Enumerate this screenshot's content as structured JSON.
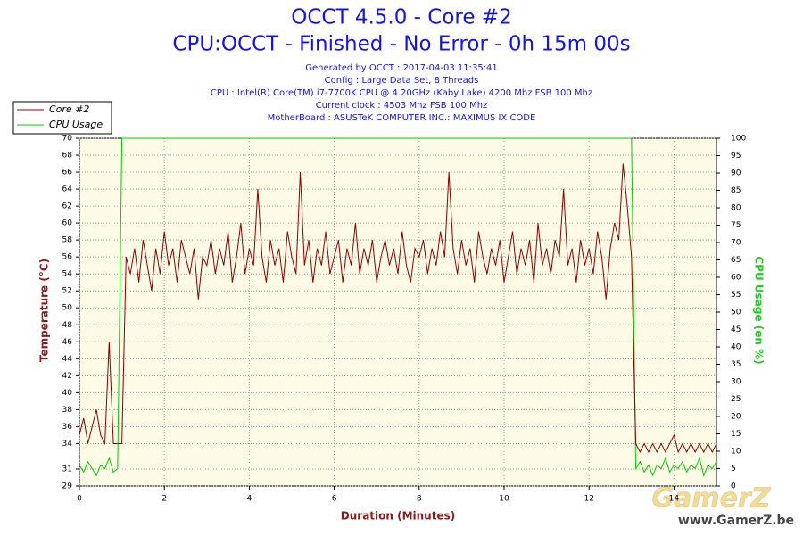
{
  "chart_data": {
    "type": "line",
    "title": "OCCT 4.5.0 - Core #2",
    "subtitle": "CPU:OCCT - Finished - No Error - 0h 15m 00s",
    "info": [
      "Generated by OCCT : 2017-04-03 11:35:41",
      "Config : Large Data Set, 8 Threads",
      "CPU : Intel(R) Core(TM) i7-7700K CPU @ 4.20GHz (Kaby Lake) 4200 Mhz FSB 100 Mhz",
      "Current clock : 4503 Mhz FSB 100 Mhz",
      "MotherBoard : ASUSTeK COMPUTER INC.: MAXIMUS IX CODE"
    ],
    "xlabel": "Duration (Minutes)",
    "ylabel": "Temperature (°C)",
    "y2label": "CPU Usage (en %)",
    "watermark": "GamerZ",
    "watermark_url": "www.GamerZ.be",
    "grid": true,
    "legend": "top-left",
    "xlim": [
      0,
      15
    ],
    "xticks": [
      0,
      2,
      4,
      6,
      8,
      10,
      12,
      14
    ],
    "ylim": [
      29,
      70
    ],
    "yticks": [
      29,
      31,
      34,
      36,
      38,
      40,
      42,
      44,
      46,
      48,
      50,
      52,
      54,
      56,
      58,
      60,
      62,
      64,
      66,
      68,
      70
    ],
    "y2lim": [
      0,
      100
    ],
    "y2ticks": [
      0,
      5,
      10,
      15,
      20,
      25,
      30,
      35,
      40,
      45,
      50,
      55,
      60,
      65,
      70,
      75,
      80,
      85,
      90,
      95,
      100
    ],
    "x": [
      0,
      0.1,
      0.2,
      0.3,
      0.4,
      0.5,
      0.6,
      0.7,
      0.8,
      0.9,
      1,
      1.1,
      1.2,
      1.3,
      1.4,
      1.5,
      1.6,
      1.7,
      1.8,
      1.9,
      2,
      2.1,
      2.2,
      2.3,
      2.4,
      2.5,
      2.6,
      2.7,
      2.8,
      2.9,
      3,
      3.1,
      3.2,
      3.3,
      3.4,
      3.5,
      3.6,
      3.7,
      3.8,
      3.9,
      4,
      4.1,
      4.2,
      4.3,
      4.4,
      4.5,
      4.6,
      4.7,
      4.8,
      4.9,
      5,
      5.1,
      5.2,
      5.3,
      5.4,
      5.5,
      5.6,
      5.7,
      5.8,
      5.9,
      6,
      6.1,
      6.2,
      6.3,
      6.4,
      6.5,
      6.6,
      6.7,
      6.8,
      6.9,
      7,
      7.1,
      7.2,
      7.3,
      7.4,
      7.5,
      7.6,
      7.7,
      7.8,
      7.9,
      8,
      8.1,
      8.2,
      8.3,
      8.4,
      8.5,
      8.6,
      8.7,
      8.8,
      8.9,
      9,
      9.1,
      9.2,
      9.3,
      9.4,
      9.5,
      9.6,
      9.7,
      9.8,
      9.9,
      10,
      10.1,
      10.2,
      10.3,
      10.4,
      10.5,
      10.6,
      10.7,
      10.8,
      10.9,
      11,
      11.1,
      11.2,
      11.3,
      11.4,
      11.5,
      11.6,
      11.7,
      11.8,
      11.9,
      12,
      12.1,
      12.2,
      12.3,
      12.4,
      12.5,
      12.6,
      12.7,
      12.8,
      12.9,
      13,
      13.1,
      13.2,
      13.3,
      13.4,
      13.5,
      13.6,
      13.7,
      13.8,
      13.9,
      14,
      14.1,
      14.2,
      14.3,
      14.4,
      14.5,
      14.6,
      14.7,
      14.8,
      14.9,
      15
    ],
    "series": [
      {
        "name": "Core #2",
        "color": "#8b0000",
        "values": [
          35,
          37,
          34,
          36,
          38,
          35,
          34,
          46,
          34,
          34,
          34,
          56,
          54,
          57,
          53,
          58,
          55,
          52,
          57,
          54,
          59,
          55,
          57,
          53,
          58,
          56,
          54,
          57,
          51,
          56,
          55,
          58,
          54,
          57,
          55,
          59,
          53,
          56,
          60,
          54,
          57,
          55,
          64,
          56,
          53,
          58,
          55,
          57,
          53,
          59,
          56,
          54,
          66,
          55,
          58,
          53,
          57,
          55,
          59,
          54,
          56,
          58,
          53,
          57,
          55,
          60,
          54,
          57,
          55,
          58,
          53,
          56,
          58,
          55,
          57,
          54,
          59,
          55,
          53,
          57,
          56,
          58,
          54,
          57,
          55,
          59,
          56,
          66,
          57,
          54,
          58,
          55,
          57,
          53,
          59,
          56,
          54,
          57,
          55,
          58,
          53,
          56,
          59,
          54,
          57,
          55,
          58,
          53,
          60,
          55,
          57,
          54,
          58,
          56,
          64,
          55,
          57,
          53,
          58,
          55,
          57,
          54,
          59,
          56,
          51,
          57,
          60,
          58,
          67,
          62,
          56,
          34,
          33,
          34,
          33,
          34,
          33,
          34,
          33,
          34,
          35,
          33,
          34,
          33,
          34,
          33,
          34,
          33,
          34,
          33,
          34
        ]
      },
      {
        "name": "CPU Usage",
        "color": "#00cc00",
        "axis": "y2",
        "values": [
          6,
          4,
          7,
          5,
          3,
          6,
          5,
          8,
          4,
          5,
          100,
          100,
          100,
          100,
          100,
          100,
          100,
          100,
          100,
          100,
          100,
          100,
          100,
          100,
          100,
          100,
          100,
          100,
          100,
          100,
          100,
          100,
          100,
          100,
          100,
          100,
          100,
          100,
          100,
          100,
          100,
          100,
          100,
          100,
          100,
          100,
          100,
          100,
          100,
          100,
          100,
          100,
          100,
          100,
          100,
          100,
          100,
          100,
          100,
          100,
          100,
          100,
          100,
          100,
          100,
          100,
          100,
          100,
          100,
          100,
          100,
          100,
          100,
          100,
          100,
          100,
          100,
          100,
          100,
          100,
          100,
          100,
          100,
          100,
          100,
          100,
          100,
          100,
          100,
          100,
          100,
          100,
          100,
          100,
          100,
          100,
          100,
          100,
          100,
          100,
          100,
          100,
          100,
          100,
          100,
          100,
          100,
          100,
          100,
          100,
          100,
          100,
          100,
          100,
          100,
          100,
          100,
          100,
          100,
          100,
          100,
          100,
          100,
          100,
          100,
          100,
          100,
          100,
          100,
          100,
          100,
          5,
          7,
          4,
          6,
          3,
          6,
          5,
          8,
          4,
          6,
          5,
          7,
          4,
          6,
          5,
          8,
          3,
          6,
          5,
          7
        ]
      }
    ]
  }
}
